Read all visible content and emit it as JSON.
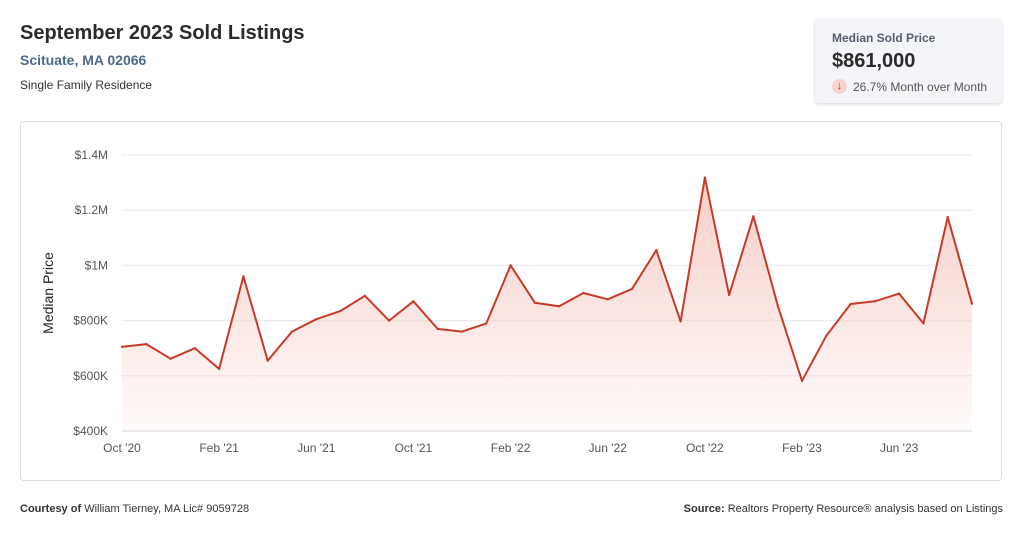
{
  "header": {
    "title": "September 2023 Sold Listings",
    "location": "Scituate, MA 02066",
    "property_type": "Single Family Residence"
  },
  "stat": {
    "label": "Median Sold Price",
    "value": "$861,000",
    "change": "26.7% Month over Month",
    "direction_icon": "arrow-down-icon",
    "change_color": "#c62f1f"
  },
  "footer": {
    "courtesy_label": "Courtesy of",
    "courtesy_text": "William Tierney, MA Lic# 9059728",
    "source_label": "Source:",
    "source_text": "Realtors Property Resource® analysis based on Listings"
  },
  "chart_data": {
    "type": "area",
    "ylabel": "Median Price",
    "xlabel": "",
    "ylim": [
      400000,
      1400000
    ],
    "yticks": [
      400000,
      600000,
      800000,
      1000000,
      1200000,
      1400000
    ],
    "ytick_labels": [
      "$400K",
      "$600K",
      "$800K",
      "$1M",
      "$1.2M",
      "$1.4M"
    ],
    "xtick_labels": [
      "Oct '20",
      "Feb '21",
      "Jun '21",
      "Oct '21",
      "Feb '22",
      "Jun '22",
      "Oct '22",
      "Feb '23",
      "Jun '23"
    ],
    "xtick_every": 4,
    "line_color": "#c83a28",
    "fill_color": "#f6c9c2",
    "grid": true,
    "x": [
      "Oct '20",
      "Nov '20",
      "Dec '20",
      "Jan '21",
      "Feb '21",
      "Mar '21",
      "Apr '21",
      "May '21",
      "Jun '21",
      "Jul '21",
      "Aug '21",
      "Sep '21",
      "Oct '21",
      "Nov '21",
      "Dec '21",
      "Jan '22",
      "Feb '22",
      "Mar '22",
      "Apr '22",
      "May '22",
      "Jun '22",
      "Jul '22",
      "Aug '22",
      "Sep '22",
      "Oct '22",
      "Nov '22",
      "Dec '22",
      "Jan '23",
      "Feb '23",
      "Mar '23",
      "Apr '23",
      "May '23",
      "Jun '23",
      "Jul '23",
      "Aug '23",
      "Sep '23"
    ],
    "values": [
      705000,
      715000,
      662000,
      700000,
      625000,
      960000,
      655000,
      760000,
      805000,
      835000,
      890000,
      800000,
      870000,
      770000,
      760000,
      790000,
      1000000,
      865000,
      852000,
      900000,
      877000,
      915000,
      1055000,
      797000,
      1318000,
      893000,
      1178000,
      855000,
      582000,
      745000,
      860000,
      870000,
      898000,
      790000,
      1175000,
      861000
    ]
  }
}
